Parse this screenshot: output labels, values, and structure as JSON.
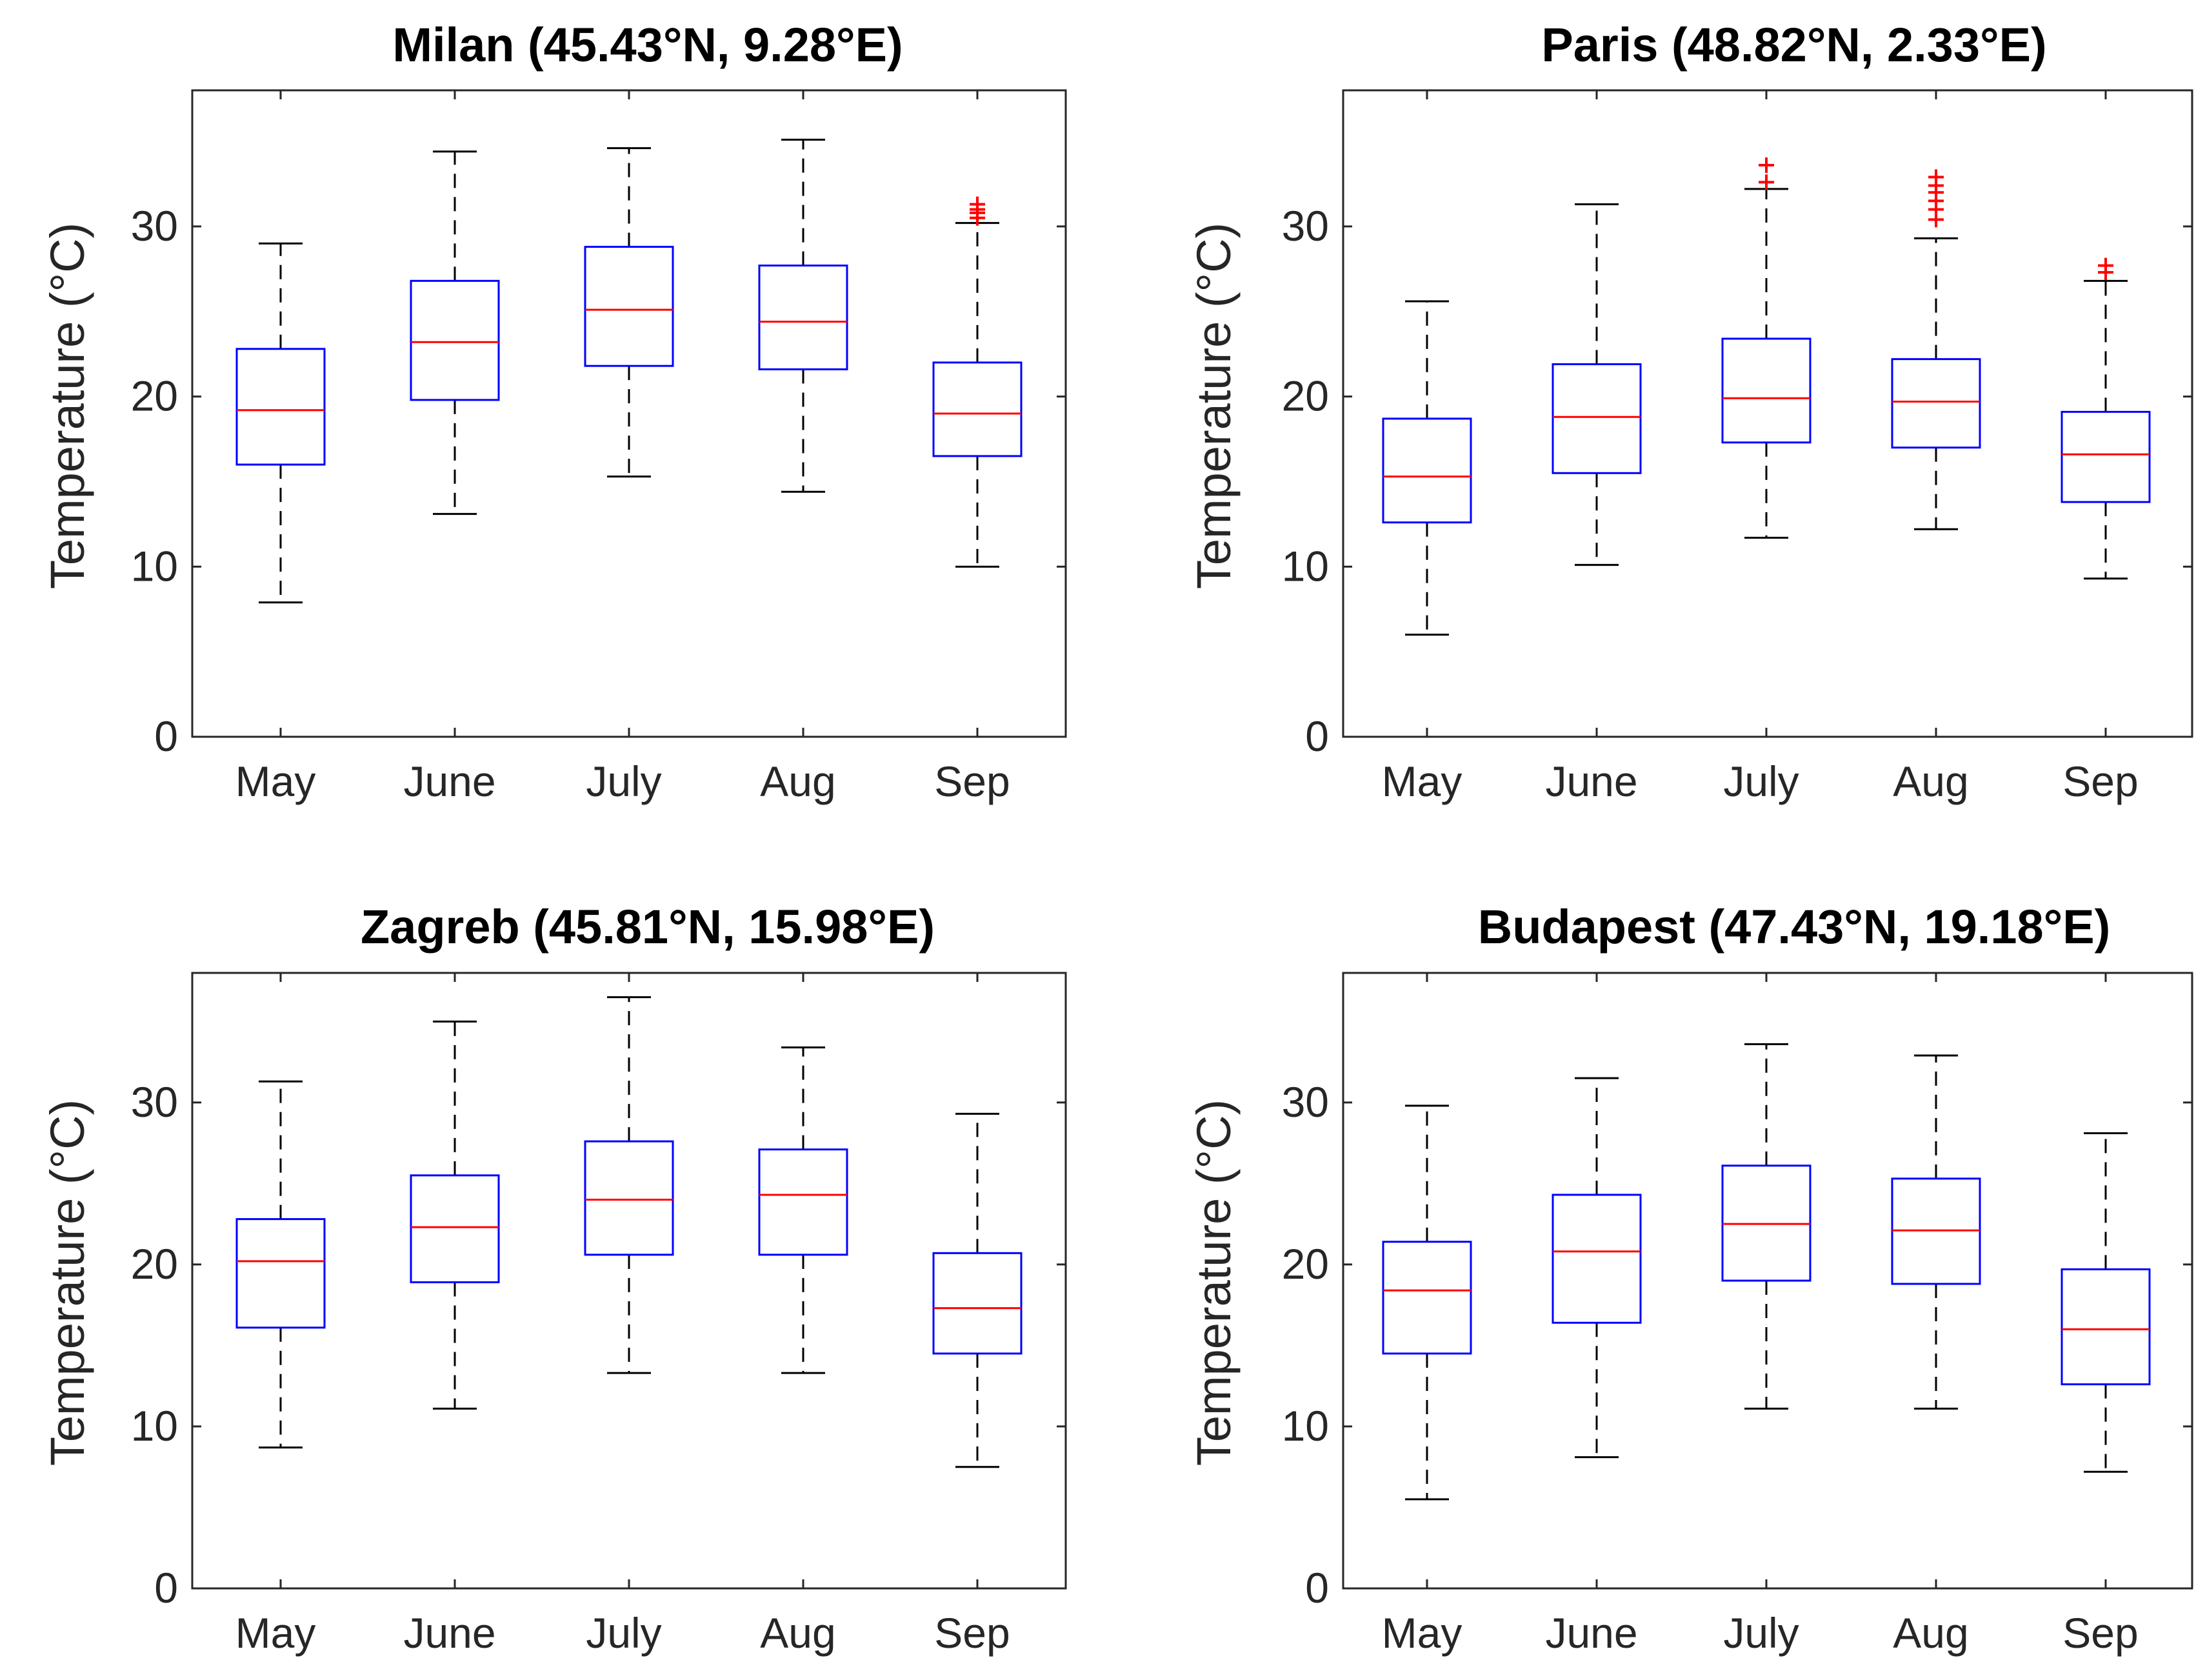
{
  "figure": {
    "type": "boxplot-grid"
  },
  "chart_data": [
    {
      "type": "box",
      "title": "Milan (45.43°N, 9.28°E)",
      "xlabel": "",
      "ylabel": "Temperature (°C)",
      "categories": [
        "May",
        "June",
        "July",
        "Aug",
        "Sep"
      ],
      "ylim": [
        0,
        38
      ],
      "yticks": [
        "0",
        "10",
        "20",
        "30"
      ],
      "boxes": [
        {
          "min": 7.9,
          "q1": 16.0,
          "median": 19.2,
          "q3": 22.8,
          "max": 29.0,
          "outliers": []
        },
        {
          "min": 13.1,
          "q1": 19.8,
          "median": 23.2,
          "q3": 26.8,
          "max": 34.4,
          "outliers": []
        },
        {
          "min": 15.3,
          "q1": 21.8,
          "median": 25.1,
          "q3": 28.8,
          "max": 34.6,
          "outliers": []
        },
        {
          "min": 14.4,
          "q1": 21.6,
          "median": 24.4,
          "q3": 27.7,
          "max": 35.1,
          "outliers": []
        },
        {
          "min": 10.0,
          "q1": 16.5,
          "median": 19.0,
          "q3": 22.0,
          "max": 30.2,
          "outliers": [
            30.5,
            30.8,
            31.0,
            31.3
          ]
        }
      ],
      "colors": {
        "box": "#0000ff",
        "median": "#ff0000",
        "whisker": "#000000",
        "outlier": "#ff0000"
      }
    },
    {
      "type": "box",
      "title": "Paris (48.82°N, 2.33°E)",
      "xlabel": "",
      "ylabel": "Temperature (°C)",
      "categories": [
        "May",
        "June",
        "July",
        "Aug",
        "Sep"
      ],
      "ylim": [
        0,
        38
      ],
      "yticks": [
        "0",
        "10",
        "20",
        "30"
      ],
      "boxes": [
        {
          "min": 6.0,
          "q1": 12.6,
          "median": 15.3,
          "q3": 18.7,
          "max": 25.6,
          "outliers": []
        },
        {
          "min": 10.1,
          "q1": 15.5,
          "median": 18.8,
          "q3": 21.9,
          "max": 31.3,
          "outliers": []
        },
        {
          "min": 11.7,
          "q1": 17.3,
          "median": 19.9,
          "q3": 23.4,
          "max": 32.2,
          "outliers": [
            32.6,
            33.6
          ]
        },
        {
          "min": 12.2,
          "q1": 17.0,
          "median": 19.7,
          "q3": 22.2,
          "max": 29.3,
          "outliers": [
            30.4,
            31.0,
            31.5,
            32.0,
            32.4,
            32.9
          ]
        },
        {
          "min": 9.3,
          "q1": 13.8,
          "median": 16.6,
          "q3": 19.1,
          "max": 26.8,
          "outliers": [
            27.3,
            27.7
          ]
        }
      ],
      "colors": {
        "box": "#0000ff",
        "median": "#ff0000",
        "whisker": "#000000",
        "outlier": "#ff0000"
      }
    },
    {
      "type": "box",
      "title": "Zagreb (45.81°N, 15.98°E)",
      "xlabel": "",
      "ylabel": "Temperature (°C)",
      "categories": [
        "May",
        "June",
        "July",
        "Aug",
        "Sep"
      ],
      "ylim": [
        0,
        38
      ],
      "yticks": [
        "0",
        "10",
        "20",
        "30"
      ],
      "boxes": [
        {
          "min": 8.7,
          "q1": 16.1,
          "median": 20.2,
          "q3": 22.8,
          "max": 31.3,
          "outliers": []
        },
        {
          "min": 11.1,
          "q1": 18.9,
          "median": 22.3,
          "q3": 25.5,
          "max": 35.0,
          "outliers": []
        },
        {
          "min": 13.3,
          "q1": 20.6,
          "median": 24.0,
          "q3": 27.6,
          "max": 36.5,
          "outliers": []
        },
        {
          "min": 13.3,
          "q1": 20.6,
          "median": 24.3,
          "q3": 27.1,
          "max": 33.4,
          "outliers": []
        },
        {
          "min": 7.5,
          "q1": 14.5,
          "median": 17.3,
          "q3": 20.7,
          "max": 29.3,
          "outliers": []
        }
      ],
      "colors": {
        "box": "#0000ff",
        "median": "#ff0000",
        "whisker": "#000000",
        "outlier": "#ff0000"
      }
    },
    {
      "type": "box",
      "title": "Budapest (47.43°N, 19.18°E)",
      "xlabel": "",
      "ylabel": "Temperature (°C)",
      "categories": [
        "May",
        "June",
        "July",
        "Aug",
        "Sep"
      ],
      "ylim": [
        0,
        38
      ],
      "yticks": [
        "0",
        "10",
        "20",
        "30"
      ],
      "boxes": [
        {
          "min": 5.5,
          "q1": 14.5,
          "median": 18.4,
          "q3": 21.4,
          "max": 29.8,
          "outliers": []
        },
        {
          "min": 8.1,
          "q1": 16.4,
          "median": 20.8,
          "q3": 24.3,
          "max": 31.5,
          "outliers": []
        },
        {
          "min": 11.1,
          "q1": 19.0,
          "median": 22.5,
          "q3": 26.1,
          "max": 33.6,
          "outliers": []
        },
        {
          "min": 11.1,
          "q1": 18.8,
          "median": 22.1,
          "q3": 25.3,
          "max": 32.9,
          "outliers": []
        },
        {
          "min": 7.2,
          "q1": 12.6,
          "median": 16.0,
          "q3": 19.7,
          "max": 28.1,
          "outliers": []
        }
      ],
      "colors": {
        "box": "#0000ff",
        "median": "#ff0000",
        "whisker": "#000000",
        "outlier": "#ff0000"
      }
    }
  ]
}
